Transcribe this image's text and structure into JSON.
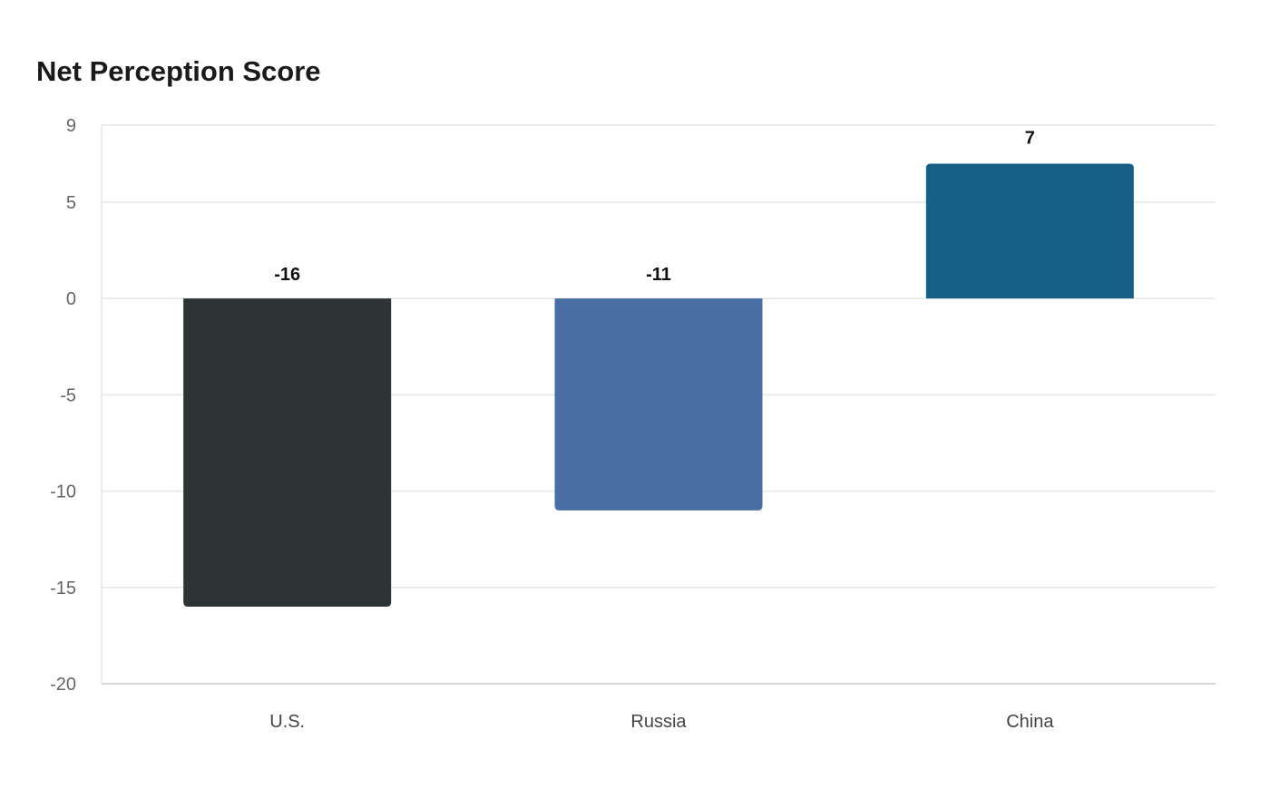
{
  "chart_data": {
    "type": "bar",
    "title": "Net Perception Score",
    "xlabel": "",
    "ylabel": "",
    "categories": [
      "U.S.",
      "Russia",
      "China"
    ],
    "values": [
      -16,
      -11,
      7
    ],
    "data_labels": [
      "-16",
      "-11",
      "7"
    ],
    "colors": [
      "#2e3436",
      "#4a6fa5",
      "#166088"
    ],
    "ylim": [
      -20,
      9
    ],
    "yticks": [
      9,
      5,
      0,
      -5,
      -10,
      -15,
      -20
    ],
    "ytick_labels": [
      "9",
      "5",
      "0",
      "-5",
      "-10",
      "-15",
      "-20"
    ],
    "grid": true,
    "legend": "none"
  }
}
